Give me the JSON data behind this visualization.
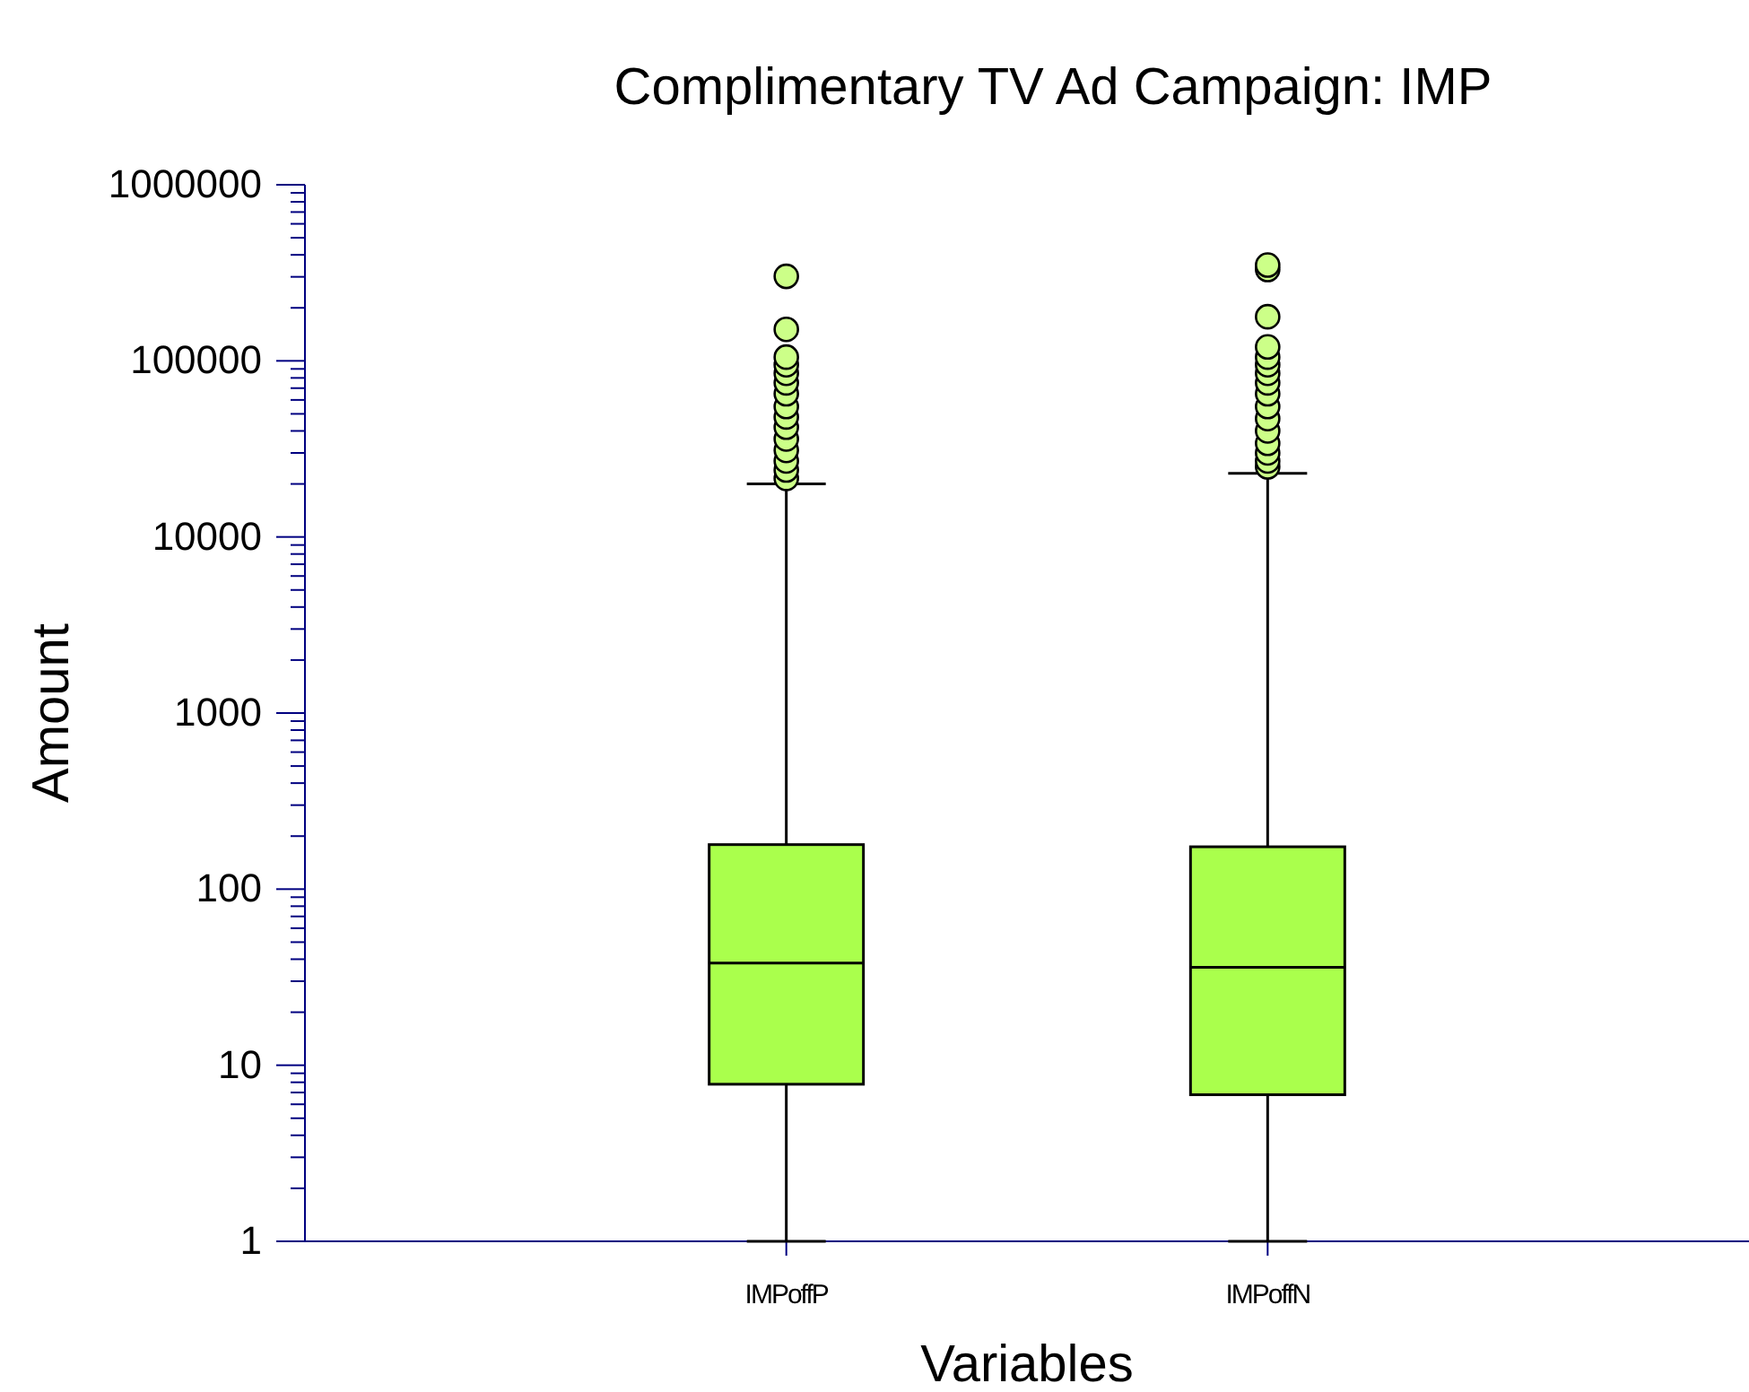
{
  "chart_data": {
    "type": "box",
    "title": "Complimentary TV Ad Campaign: IMP",
    "xlabel": "Variables",
    "ylabel": "Amount",
    "categories": [
      "IMPoffP",
      "IMPoffN"
    ],
    "series": [
      {
        "color": "#aaff4c",
        "boxes": [
          {
            "low": 1,
            "q1": 7.8,
            "median": 38,
            "q3": 179,
            "high": 20000,
            "outliers": [
              302000,
              151000,
              105000,
              95000,
              85000,
              75000,
              65000,
              55000,
              48000,
              42000,
              36000,
              31000,
              27000,
              24000,
              21500
            ]
          },
          {
            "low": 1,
            "q1": 6.8,
            "median": 36,
            "q3": 174,
            "high": 23000,
            "outliers": [
              350000,
              330000,
              178000,
              120000,
              105000,
              95000,
              85000,
              75000,
              65000,
              55000,
              47000,
              40000,
              34000,
              30000,
              27000,
              25000
            ]
          }
        ]
      }
    ],
    "log": true,
    "ylim": [
      1,
      1000000
    ],
    "yticks": [
      1,
      {
        "value": 2,
        "label": null
      },
      {
        "value": 3,
        "label": null
      },
      {
        "value": 4,
        "label": null
      },
      {
        "value": 5,
        "label": null
      },
      {
        "value": 6,
        "label": null
      },
      {
        "value": 7,
        "label": null
      },
      {
        "value": 8,
        "label": null
      },
      {
        "value": 9,
        "label": null
      },
      10,
      {
        "value": 20,
        "label": null
      },
      {
        "value": 30,
        "label": null
      },
      {
        "value": 40,
        "label": null
      },
      {
        "value": 50,
        "label": null
      },
      {
        "value": 60,
        "label": null
      },
      {
        "value": 70,
        "label": null
      },
      {
        "value": 80,
        "label": null
      },
      {
        "value": 90,
        "label": null
      },
      100,
      {
        "value": 200,
        "label": null
      },
      {
        "value": 300,
        "label": null
      },
      {
        "value": 400,
        "label": null
      },
      {
        "value": 500,
        "label": null
      },
      {
        "value": 600,
        "label": null
      },
      {
        "value": 700,
        "label": null
      },
      {
        "value": 800,
        "label": null
      },
      {
        "value": 900,
        "label": null
      },
      1000,
      {
        "value": 2000,
        "label": null
      },
      {
        "value": 3000,
        "label": null
      },
      {
        "value": 4000,
        "label": null
      },
      {
        "value": 5000,
        "label": null
      },
      {
        "value": 6000,
        "label": null
      },
      {
        "value": 7000,
        "label": null
      },
      {
        "value": 8000,
        "label": null
      },
      {
        "value": 9000,
        "label": null
      },
      10000,
      {
        "value": 20000,
        "label": null
      },
      {
        "value": 30000,
        "label": null
      },
      {
        "value": 40000,
        "label": null
      },
      {
        "value": 50000,
        "label": null
      },
      {
        "value": 60000,
        "label": null
      },
      {
        "value": 70000,
        "label": null
      },
      {
        "value": 80000,
        "label": null
      },
      {
        "value": 90000,
        "label": null
      },
      100000,
      {
        "value": 200000,
        "label": null
      },
      {
        "value": 300000,
        "label": null
      },
      {
        "value": 400000,
        "label": null
      },
      {
        "value": 500000,
        "label": null
      },
      {
        "value": 600000,
        "label": null
      },
      {
        "value": 700000,
        "label": null
      },
      {
        "value": 800000,
        "label": null
      },
      {
        "value": 900000,
        "label": null
      },
      1000000
    ],
    "grid": false
  }
}
